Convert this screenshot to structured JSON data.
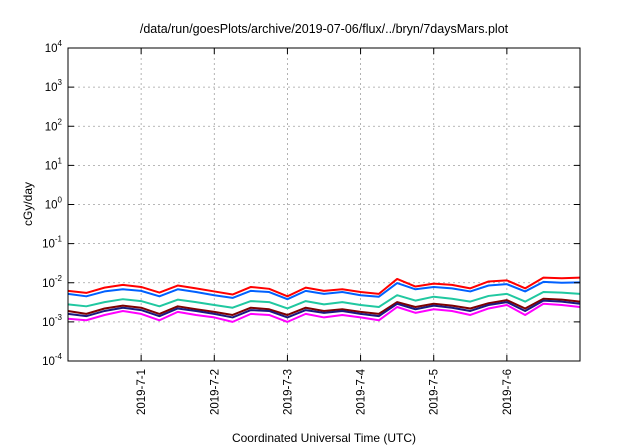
{
  "chart_data": {
    "type": "line",
    "title": "/data/run/goesPlots/archive/2019-07-06/flux/../bryn/7daysMars.plot",
    "xlabel": "Coordinated Universal Time (UTC)",
    "ylabel": "cGy/day",
    "yscale": "log",
    "ylim": [
      0.0001,
      10000
    ],
    "y_ticks": [
      {
        "base": "10",
        "exp": "-4"
      },
      {
        "base": "10",
        "exp": "-3"
      },
      {
        "base": "10",
        "exp": "-2"
      },
      {
        "base": "10",
        "exp": "-1"
      },
      {
        "base": "10",
        "exp": "0"
      },
      {
        "base": "10",
        "exp": "1"
      },
      {
        "base": "10",
        "exp": "2"
      },
      {
        "base": "10",
        "exp": "3"
      },
      {
        "base": "10",
        "exp": "4"
      }
    ],
    "x_ticks": [
      "2019-7-1",
      "2019-7-2",
      "2019-7-3",
      "2019-7-4",
      "2019-7-5",
      "2019-7-6"
    ],
    "xlim_days": [
      0,
      7
    ],
    "x_tick_positions_days": [
      1,
      2,
      3,
      4,
      5,
      6
    ],
    "grid": true,
    "x_days": [
      0,
      0.25,
      0.5,
      0.75,
      1,
      1.25,
      1.5,
      1.75,
      2,
      2.25,
      2.5,
      2.75,
      3,
      3.25,
      3.5,
      3.75,
      4,
      4.25,
      4.5,
      4.75,
      5,
      5.25,
      5.5,
      5.75,
      6,
      6.25,
      6.5,
      6.75,
      7
    ],
    "series": [
      {
        "color": "#ff0000",
        "values": [
          0.0062,
          0.0055,
          0.0075,
          0.0088,
          0.0078,
          0.0056,
          0.0085,
          0.0072,
          0.006,
          0.005,
          0.0078,
          0.007,
          0.0045,
          0.0075,
          0.0062,
          0.0068,
          0.0058,
          0.0052,
          0.0125,
          0.008,
          0.0095,
          0.0088,
          0.0072,
          0.0108,
          0.0115,
          0.0072,
          0.0135,
          0.013,
          0.0135
        ]
      },
      {
        "color": "#0060ff",
        "values": [
          0.0052,
          0.0045,
          0.006,
          0.0068,
          0.0062,
          0.0045,
          0.0068,
          0.0058,
          0.0048,
          0.0041,
          0.0062,
          0.0058,
          0.0038,
          0.0062,
          0.0052,
          0.0058,
          0.0048,
          0.0044,
          0.0098,
          0.0068,
          0.0078,
          0.0072,
          0.006,
          0.0085,
          0.0092,
          0.006,
          0.0105,
          0.01,
          0.0102
        ]
      },
      {
        "color": "#20c8a0",
        "values": [
          0.0028,
          0.0025,
          0.0032,
          0.0038,
          0.0034,
          0.0025,
          0.0037,
          0.0032,
          0.0027,
          0.0023,
          0.0034,
          0.0032,
          0.0022,
          0.0034,
          0.0028,
          0.0032,
          0.0027,
          0.0024,
          0.0048,
          0.0035,
          0.0044,
          0.0039,
          0.0033,
          0.0046,
          0.0052,
          0.0033,
          0.0058,
          0.0056,
          0.0052
        ]
      },
      {
        "color": "#7f0000",
        "values": [
          0.0019,
          0.0016,
          0.0022,
          0.0026,
          0.0023,
          0.0016,
          0.0025,
          0.0021,
          0.0018,
          0.0015,
          0.0023,
          0.0021,
          0.0015,
          0.0023,
          0.0019,
          0.0021,
          0.0018,
          0.0016,
          0.0032,
          0.0024,
          0.0029,
          0.0026,
          0.0022,
          0.003,
          0.0036,
          0.0022,
          0.0039,
          0.0037,
          0.0033
        ]
      },
      {
        "color": "#1a1a80",
        "values": [
          0.0016,
          0.0014,
          0.0019,
          0.0023,
          0.002,
          0.0014,
          0.0022,
          0.0019,
          0.0016,
          0.0013,
          0.002,
          0.0019,
          0.0013,
          0.002,
          0.0017,
          0.0019,
          0.0016,
          0.0014,
          0.0029,
          0.0021,
          0.0026,
          0.0023,
          0.0019,
          0.0027,
          0.0032,
          0.0019,
          0.0035,
          0.0033,
          0.0029
        ]
      },
      {
        "color": "#ff00ff",
        "values": [
          0.0012,
          0.0011,
          0.0015,
          0.0019,
          0.0016,
          0.0011,
          0.0018,
          0.0015,
          0.0013,
          0.001,
          0.0016,
          0.0015,
          0.001,
          0.0016,
          0.0013,
          0.0015,
          0.0013,
          0.0011,
          0.0024,
          0.0017,
          0.0021,
          0.0019,
          0.0015,
          0.0022,
          0.0027,
          0.0015,
          0.0029,
          0.0027,
          0.0024
        ]
      }
    ]
  }
}
